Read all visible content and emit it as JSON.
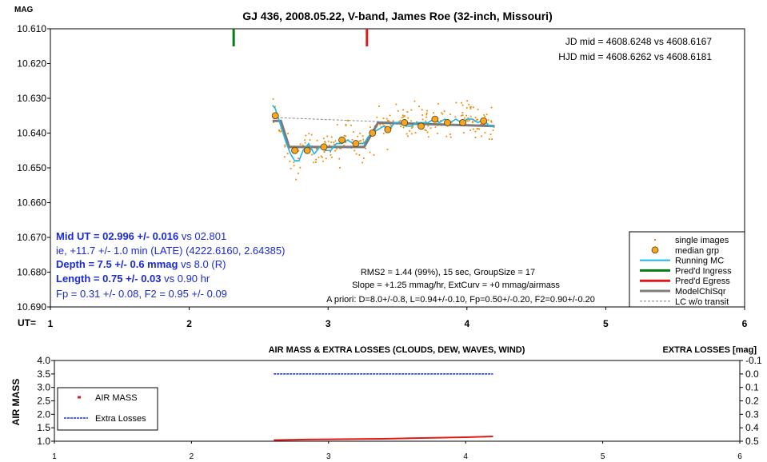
{
  "top_chart": {
    "title": "GJ 436, 2008.05.22, V-band, James Roe (32-inch, Missouri)",
    "ylabel": "MAG",
    "xlabel": "UT=",
    "ylim": [
      10.61,
      10.69
    ],
    "y_inverted": true,
    "yticks": [
      "10.610",
      "10.620",
      "10.630",
      "10.640",
      "10.650",
      "10.660",
      "10.670",
      "10.680",
      "10.690"
    ],
    "xlim": [
      1,
      6
    ],
    "xticks": [
      "1",
      "2",
      "3",
      "4",
      "5",
      "6"
    ],
    "info_top": [
      "JD mid = 4608.6248 vs 4608.6167",
      "HJD mid = 4608.6262 vs 4608.6181"
    ],
    "results": [
      {
        "bold": "Mid UT = 02.996 +/- 0.016",
        "rest": " vs 02.801"
      },
      {
        "bold": "",
        "rest": "ie, +11.7 +/- 1.0 min (LATE) (4222.6160, 2.64385)"
      },
      {
        "bold": "Depth = 7.5 +/- 0.6 mmag",
        "rest": " vs 8.0 (R)"
      },
      {
        "bold": "Length = 0.75 +/- 0.03",
        "rest": "  vs 0.90 hr"
      },
      {
        "bold": "",
        "rest": "Fp = 0.31 +/- 0.08, F2 = 0.95 +/- 0.09"
      }
    ],
    "fit_info": [
      "RMS2 = 1.44 (99%), 15 sec, GroupSize = 17",
      "Slope = +1.25 mmag/hr, ExtCurv = +0 mmag/airmass",
      "A priori: D=8.0+/-0.8, L=0.94+/-0.10, Fp=0.50+/-0.20, F2=0.90+/-0.20"
    ],
    "legend": [
      {
        "label": "single images",
        "color": "#f08a00",
        "kind": "dot"
      },
      {
        "label": "median grp",
        "color": "#f5a623",
        "kind": "circle"
      },
      {
        "label": "Running MC",
        "color": "#1fb4e8",
        "kind": "line"
      },
      {
        "label": "Pred'd Ingress",
        "color": "#0a7a12",
        "kind": "thick"
      },
      {
        "label": "Pred'd Egress",
        "color": "#e01a1a",
        "kind": "thick"
      },
      {
        "label": "ModelChiSqr",
        "color": "#7f7f7f",
        "kind": "thick"
      },
      {
        "label": "LC w/o transit",
        "color": "#7f7f7f",
        "kind": "dashed"
      }
    ]
  },
  "bottom_chart": {
    "title": "AIR MASS & EXTRA LOSSES (CLOUDS, DEW, WAVES, WIND)",
    "ylabel": "AIR MASS",
    "y2label": "EXTRA LOSSES [mag]",
    "ylim": [
      1.0,
      4.0
    ],
    "yticks": [
      "1.0",
      "1.5",
      "2.0",
      "2.5",
      "3.0",
      "3.5",
      "4.0"
    ],
    "y2lim": [
      -0.1,
      0.5
    ],
    "y2ticks": [
      "-0.1",
      "0.0",
      "0.1",
      "0.2",
      "0.3",
      "0.4",
      "0.5"
    ],
    "xlim": [
      1,
      6
    ],
    "xticks": [
      "1",
      "2",
      "3",
      "4",
      "5",
      "6"
    ],
    "legend": [
      {
        "label": "AIR MASS",
        "color": "#e01a1a",
        "kind": "dot"
      },
      {
        "label": "Extra Losses",
        "color": "#1a3ad6",
        "kind": "dashed"
      }
    ]
  },
  "chart_data": [
    {
      "type": "scatter",
      "title": "GJ 436, 2008.05.22, V-band, James Roe (32-inch, Missouri)",
      "xlabel": "UT=",
      "ylabel": "MAG",
      "xlim": [
        1,
        6
      ],
      "ylim": [
        10.61,
        10.69
      ],
      "series": [
        {
          "name": "median grp",
          "x": [
            2.62,
            2.76,
            2.85,
            2.97,
            3.1,
            3.2,
            3.32,
            3.43,
            3.55,
            3.67,
            3.77,
            3.86,
            3.97,
            4.12
          ],
          "y": [
            10.635,
            10.645,
            10.645,
            10.644,
            10.642,
            10.643,
            10.64,
            10.639,
            10.637,
            10.638,
            10.636,
            10.637,
            10.637,
            10.6365
          ]
        },
        {
          "name": "ModelChiSqr",
          "x": [
            2.6,
            2.66,
            2.72,
            3.26,
            3.36,
            4.2
          ],
          "y": [
            10.6365,
            10.6365,
            10.644,
            10.644,
            10.637,
            10.638
          ]
        },
        {
          "name": "LC w/o transit",
          "x": [
            2.6,
            4.2
          ],
          "y": [
            10.6355,
            10.638
          ]
        },
        {
          "name": "Running MC",
          "x": [
            2.6,
            2.62,
            2.66,
            2.7,
            2.73,
            2.76,
            2.79,
            2.82,
            2.86,
            2.9,
            2.94,
            2.98,
            3.02,
            3.06,
            3.1,
            3.14,
            3.18,
            3.22,
            3.26,
            3.29,
            3.32,
            3.36,
            3.4,
            3.44,
            3.48,
            3.52,
            3.56,
            3.6,
            3.64,
            3.68,
            3.72,
            3.76,
            3.8,
            3.84,
            3.88,
            3.92,
            3.96,
            4.0,
            4.04,
            4.08,
            4.12,
            4.16,
            4.2
          ],
          "y": [
            10.632,
            10.633,
            10.638,
            10.643,
            10.646,
            10.648,
            10.648,
            10.645,
            10.643,
            10.646,
            10.644,
            10.645,
            10.645,
            10.643,
            10.643,
            10.642,
            10.643,
            10.643,
            10.643,
            10.641,
            10.64,
            10.639,
            10.638,
            10.639,
            10.637,
            10.637,
            10.638,
            10.638,
            10.637,
            10.637,
            10.637,
            10.636,
            10.637,
            10.636,
            10.637,
            10.636,
            10.637,
            10.636,
            10.636,
            10.637,
            10.636,
            10.638,
            10.638
          ]
        },
        {
          "name": "Pred'd Ingress",
          "x": [
            2.32
          ],
          "y": [
            10.61
          ]
        },
        {
          "name": "Pred'd Egress",
          "x": [
            3.28
          ],
          "y": [
            10.61
          ]
        }
      ]
    },
    {
      "type": "line",
      "title": "AIR MASS & EXTRA LOSSES (CLOUDS, DEW, WAVES, WIND)",
      "ylabel": "AIR MASS",
      "y2label": "EXTRA LOSSES [mag]",
      "xlim": [
        1,
        6
      ],
      "ylim": [
        1.0,
        4.0
      ],
      "y2lim": [
        -0.1,
        0.5
      ],
      "series": [
        {
          "name": "AIR MASS",
          "x": [
            2.6,
            2.8,
            3.0,
            3.2,
            3.4,
            3.6,
            3.8,
            4.0,
            4.2
          ],
          "y": [
            1.04,
            1.06,
            1.07,
            1.08,
            1.09,
            1.11,
            1.13,
            1.15,
            1.18
          ]
        },
        {
          "name": "Extra Losses",
          "x": [
            2.6,
            4.2
          ],
          "y": [
            0.0,
            0.0
          ]
        }
      ]
    }
  ]
}
